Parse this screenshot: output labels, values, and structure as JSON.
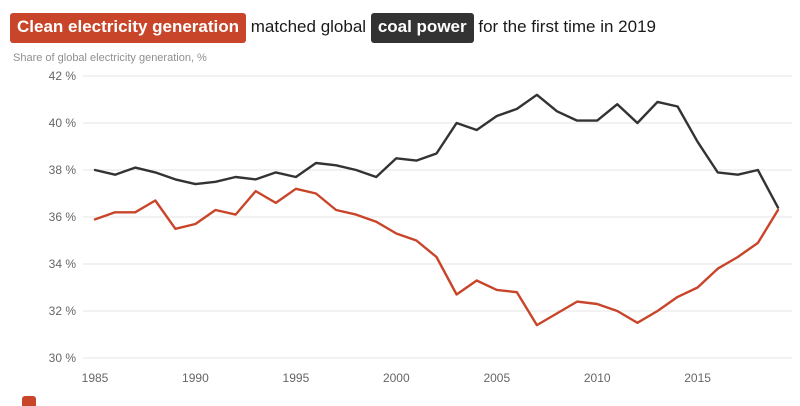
{
  "title": {
    "highlight_clean": "Clean electricity generation",
    "middle": "matched global",
    "highlight_coal": "coal power",
    "end": "for the first time in 2019"
  },
  "subtitle": "Share of global electricity generation, %",
  "colors": {
    "clean": "#c9452a",
    "coal": "#333333",
    "grid": "#e4e4e4",
    "axis_text": "#666666",
    "title_text": "#1a1a1a"
  },
  "chart_data": {
    "type": "line",
    "title": "Clean electricity generation matched global coal power for the first time in 2019",
    "ylabel": "Share of global electricity generation, %",
    "xlim": [
      1985,
      2019
    ],
    "ylim": [
      30,
      42
    ],
    "x_label_ticks": [
      1985,
      1990,
      1995,
      2000,
      2005,
      2010,
      2015
    ],
    "y_ticks": [
      30,
      32,
      34,
      36,
      38,
      40,
      42
    ],
    "y_tick_suffix": " %",
    "grid": "horizontal",
    "legend_position": "none",
    "x": [
      1985,
      1986,
      1987,
      1988,
      1989,
      1990,
      1991,
      1992,
      1993,
      1994,
      1995,
      1996,
      1997,
      1998,
      1999,
      2000,
      2001,
      2002,
      2003,
      2004,
      2005,
      2006,
      2007,
      2008,
      2009,
      2010,
      2011,
      2012,
      2013,
      2014,
      2015,
      2016,
      2017,
      2018,
      2019
    ],
    "series": [
      {
        "name": "coal power",
        "slug": "coal-power",
        "color": "#333333",
        "values": [
          38.0,
          37.8,
          38.1,
          37.9,
          37.6,
          37.4,
          37.5,
          37.7,
          37.6,
          37.9,
          37.7,
          38.3,
          38.2,
          38.0,
          37.7,
          38.5,
          38.4,
          38.7,
          40.0,
          39.7,
          40.3,
          40.6,
          41.2,
          40.5,
          40.1,
          40.1,
          40.8,
          40.0,
          40.9,
          40.7,
          39.2,
          37.9,
          37.8,
          38.0,
          36.4
        ]
      },
      {
        "name": "clean electricity generation",
        "slug": "clean-electricity",
        "color": "#c9452a",
        "values": [
          35.9,
          36.2,
          36.2,
          36.7,
          35.5,
          35.7,
          36.3,
          36.1,
          37.1,
          36.6,
          37.2,
          37.0,
          36.3,
          36.1,
          35.8,
          35.3,
          35.0,
          34.3,
          32.7,
          33.3,
          32.9,
          32.8,
          31.4,
          31.9,
          32.4,
          32.3,
          32.0,
          31.5,
          32.0,
          32.6,
          33.0,
          33.8,
          34.3,
          34.9,
          36.3
        ]
      }
    ]
  }
}
